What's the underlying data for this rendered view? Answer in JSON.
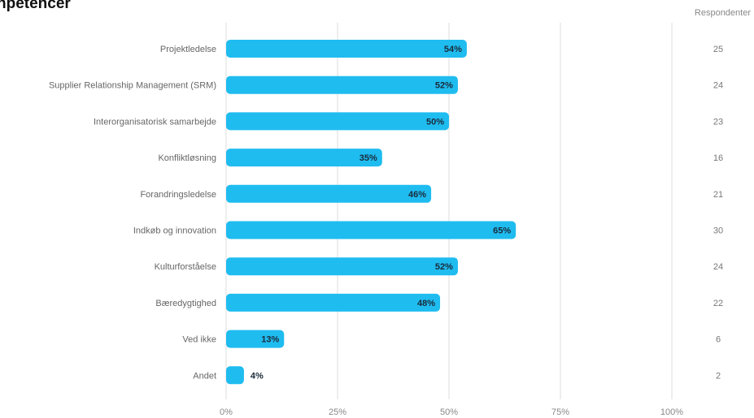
{
  "title": "npetencer",
  "respondents_header": "Respondenter",
  "colors": {
    "bar": "#1fbcf0",
    "grid": "#dddddd"
  },
  "chart_data": {
    "type": "bar",
    "orientation": "horizontal",
    "title": "npetencer",
    "xlabel": "",
    "ylabel": "",
    "xlim": [
      0,
      100
    ],
    "x_ticks": [
      "0%",
      "25%",
      "50%",
      "75%",
      "100%"
    ],
    "grid": true,
    "categories": [
      "Projektledelse",
      "Supplier Relationship Management (SRM)",
      "Interorganisatorisk samarbejde",
      "Konfliktløsning",
      "Forandringsledelse",
      "Indkøb og innovation",
      "Kulturforståelse",
      "Bæredygtighed",
      "Ved ikke",
      "Andet"
    ],
    "values": [
      54,
      52,
      50,
      35,
      46,
      65,
      52,
      48,
      13,
      4
    ],
    "value_labels": [
      "54%",
      "52%",
      "50%",
      "35%",
      "46%",
      "65%",
      "52%",
      "48%",
      "13%",
      "4%"
    ],
    "respondents": [
      "25",
      "24",
      "23",
      "16",
      "21",
      "30",
      "24",
      "22",
      "6",
      "2"
    ]
  }
}
